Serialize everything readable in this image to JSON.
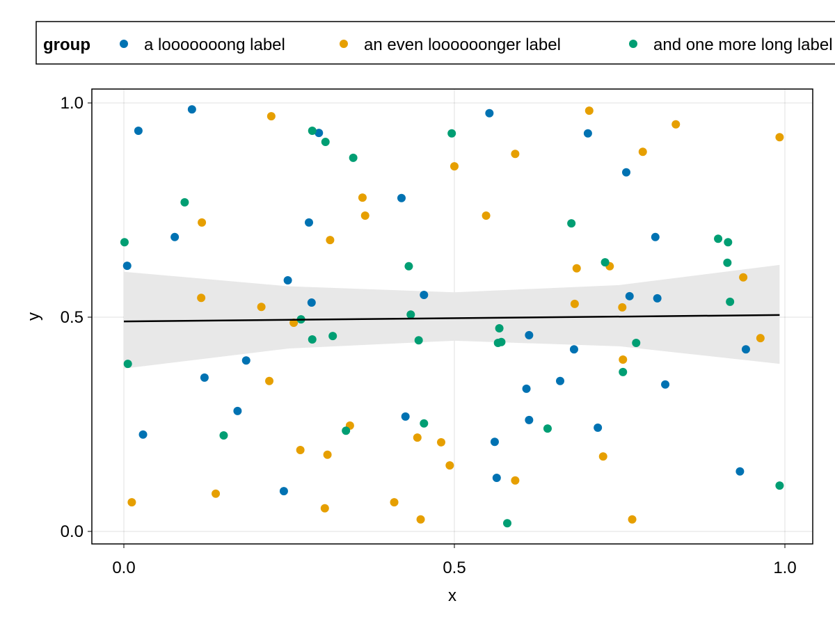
{
  "chart_data": {
    "type": "scatter",
    "title": "",
    "xlabel": "x",
    "ylabel": "y",
    "xlim": [
      -0.05,
      1.04
    ],
    "ylim": [
      -0.03,
      1.03
    ],
    "xticks": [
      0.0,
      0.5,
      1.0
    ],
    "xtick_labels": [
      "0.0",
      "0.5",
      "1.0"
    ],
    "yticks": [
      0.0,
      0.5,
      1.0
    ],
    "ytick_labels": [
      "0.0",
      "0.5",
      "1.0"
    ],
    "grid": true,
    "legend": {
      "title": "group",
      "placement": "top"
    },
    "series": [
      {
        "name": "a looooooong label",
        "color": "#0072B2",
        "points": [
          [
            0.103,
            0.985
          ],
          [
            0.022,
            0.935
          ],
          [
            0.295,
            0.93
          ],
          [
            0.553,
            0.976
          ],
          [
            0.702,
            0.929
          ],
          [
            0.76,
            0.838
          ],
          [
            0.42,
            0.778
          ],
          [
            0.28,
            0.721
          ],
          [
            0.077,
            0.687
          ],
          [
            0.804,
            0.687
          ],
          [
            0.005,
            0.62
          ],
          [
            0.248,
            0.586
          ],
          [
            0.454,
            0.552
          ],
          [
            0.284,
            0.534
          ],
          [
            0.765,
            0.549
          ],
          [
            0.807,
            0.544
          ],
          [
            0.613,
            0.458
          ],
          [
            0.681,
            0.425
          ],
          [
            0.185,
            0.399
          ],
          [
            0.122,
            0.359
          ],
          [
            0.66,
            0.351
          ],
          [
            0.609,
            0.333
          ],
          [
            0.819,
            0.343
          ],
          [
            0.941,
            0.425
          ],
          [
            0.172,
            0.281
          ],
          [
            0.426,
            0.268
          ],
          [
            0.613,
            0.26
          ],
          [
            0.717,
            0.242
          ],
          [
            0.561,
            0.209
          ],
          [
            0.029,
            0.226
          ],
          [
            0.242,
            0.094
          ],
          [
            0.564,
            0.125
          ],
          [
            0.932,
            0.14
          ]
        ]
      },
      {
        "name": "an even loooooonger label",
        "color": "#E69F00",
        "points": [
          [
            0.223,
            0.969
          ],
          [
            0.704,
            0.982
          ],
          [
            0.835,
            0.95
          ],
          [
            0.592,
            0.881
          ],
          [
            0.785,
            0.886
          ],
          [
            0.992,
            0.92
          ],
          [
            0.5,
            0.852
          ],
          [
            0.361,
            0.779
          ],
          [
            0.365,
            0.737
          ],
          [
            0.548,
            0.737
          ],
          [
            0.118,
            0.721
          ],
          [
            0.312,
            0.68
          ],
          [
            0.685,
            0.614
          ],
          [
            0.735,
            0.619
          ],
          [
            0.937,
            0.593
          ],
          [
            0.117,
            0.545
          ],
          [
            0.208,
            0.524
          ],
          [
            0.682,
            0.531
          ],
          [
            0.754,
            0.523
          ],
          [
            0.257,
            0.487
          ],
          [
            0.963,
            0.451
          ],
          [
            0.755,
            0.401
          ],
          [
            0.22,
            0.351
          ],
          [
            0.342,
            0.247
          ],
          [
            0.444,
            0.219
          ],
          [
            0.48,
            0.208
          ],
          [
            0.267,
            0.19
          ],
          [
            0.308,
            0.179
          ],
          [
            0.725,
            0.175
          ],
          [
            0.493,
            0.154
          ],
          [
            0.592,
            0.119
          ],
          [
            0.012,
            0.068
          ],
          [
            0.139,
            0.088
          ],
          [
            0.409,
            0.068
          ],
          [
            0.304,
            0.054
          ],
          [
            0.449,
            0.028
          ],
          [
            0.769,
            0.028
          ]
        ]
      },
      {
        "name": "and one more long label",
        "color": "#009E73",
        "points": [
          [
            0.285,
            0.935
          ],
          [
            0.305,
            0.909
          ],
          [
            0.347,
            0.872
          ],
          [
            0.496,
            0.929
          ],
          [
            0.092,
            0.768
          ],
          [
            0.001,
            0.675
          ],
          [
            0.677,
            0.719
          ],
          [
            0.431,
            0.619
          ],
          [
            0.728,
            0.628
          ],
          [
            0.899,
            0.683
          ],
          [
            0.914,
            0.675
          ],
          [
            0.913,
            0.627
          ],
          [
            0.434,
            0.506
          ],
          [
            0.917,
            0.536
          ],
          [
            0.268,
            0.495
          ],
          [
            0.285,
            0.448
          ],
          [
            0.316,
            0.456
          ],
          [
            0.446,
            0.446
          ],
          [
            0.568,
            0.474
          ],
          [
            0.566,
            0.44
          ],
          [
            0.571,
            0.442
          ],
          [
            0.006,
            0.391
          ],
          [
            0.755,
            0.372
          ],
          [
            0.775,
            0.44
          ],
          [
            0.151,
            0.224
          ],
          [
            0.454,
            0.252
          ],
          [
            0.336,
            0.235
          ],
          [
            0.641,
            0.24
          ],
          [
            0.58,
            0.019
          ],
          [
            0.992,
            0.107
          ]
        ]
      }
    ],
    "regression": {
      "line": [
        [
          0.0,
          0.49
        ],
        [
          0.992,
          0.505
        ]
      ],
      "band_upper": [
        [
          0.0,
          0.606
        ],
        [
          0.25,
          0.572
        ],
        [
          0.5,
          0.558
        ],
        [
          0.75,
          0.575
        ],
        [
          0.992,
          0.622
        ]
      ],
      "band_lower": [
        [
          0.0,
          0.38
        ],
        [
          0.25,
          0.427
        ],
        [
          0.5,
          0.445
        ],
        [
          0.75,
          0.432
        ],
        [
          0.992,
          0.391
        ]
      ],
      "line_color": "#000000",
      "band_color": "#E8E8E8"
    }
  }
}
